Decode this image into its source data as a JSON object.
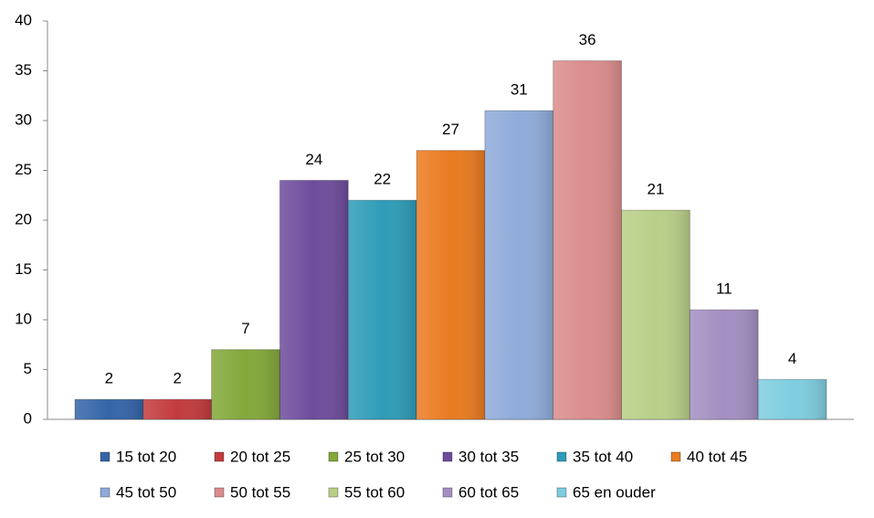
{
  "chart_data": {
    "type": "bar",
    "categories": [
      "15 tot 20",
      "20 tot 25",
      "25 tot 30",
      "30 tot 35",
      "35 tot 40",
      "40 tot 45",
      "45 tot 50",
      "50 tot 55",
      "55 tot 60",
      "60 tot 65",
      "65 en ouder"
    ],
    "values": [
      2,
      2,
      7,
      24,
      22,
      27,
      31,
      36,
      21,
      11,
      4
    ],
    "colors": [
      "#3465a8",
      "#c23b3d",
      "#83a83a",
      "#6e4c9c",
      "#2e9cb8",
      "#ea7b20",
      "#8eabda",
      "#da8d8c",
      "#b9cf88",
      "#a38fc2",
      "#7fcde0"
    ],
    "ylim": [
      0,
      40
    ],
    "yticks": [
      0,
      5,
      10,
      15,
      20,
      25,
      30,
      35,
      40
    ],
    "legend": "bottom"
  }
}
